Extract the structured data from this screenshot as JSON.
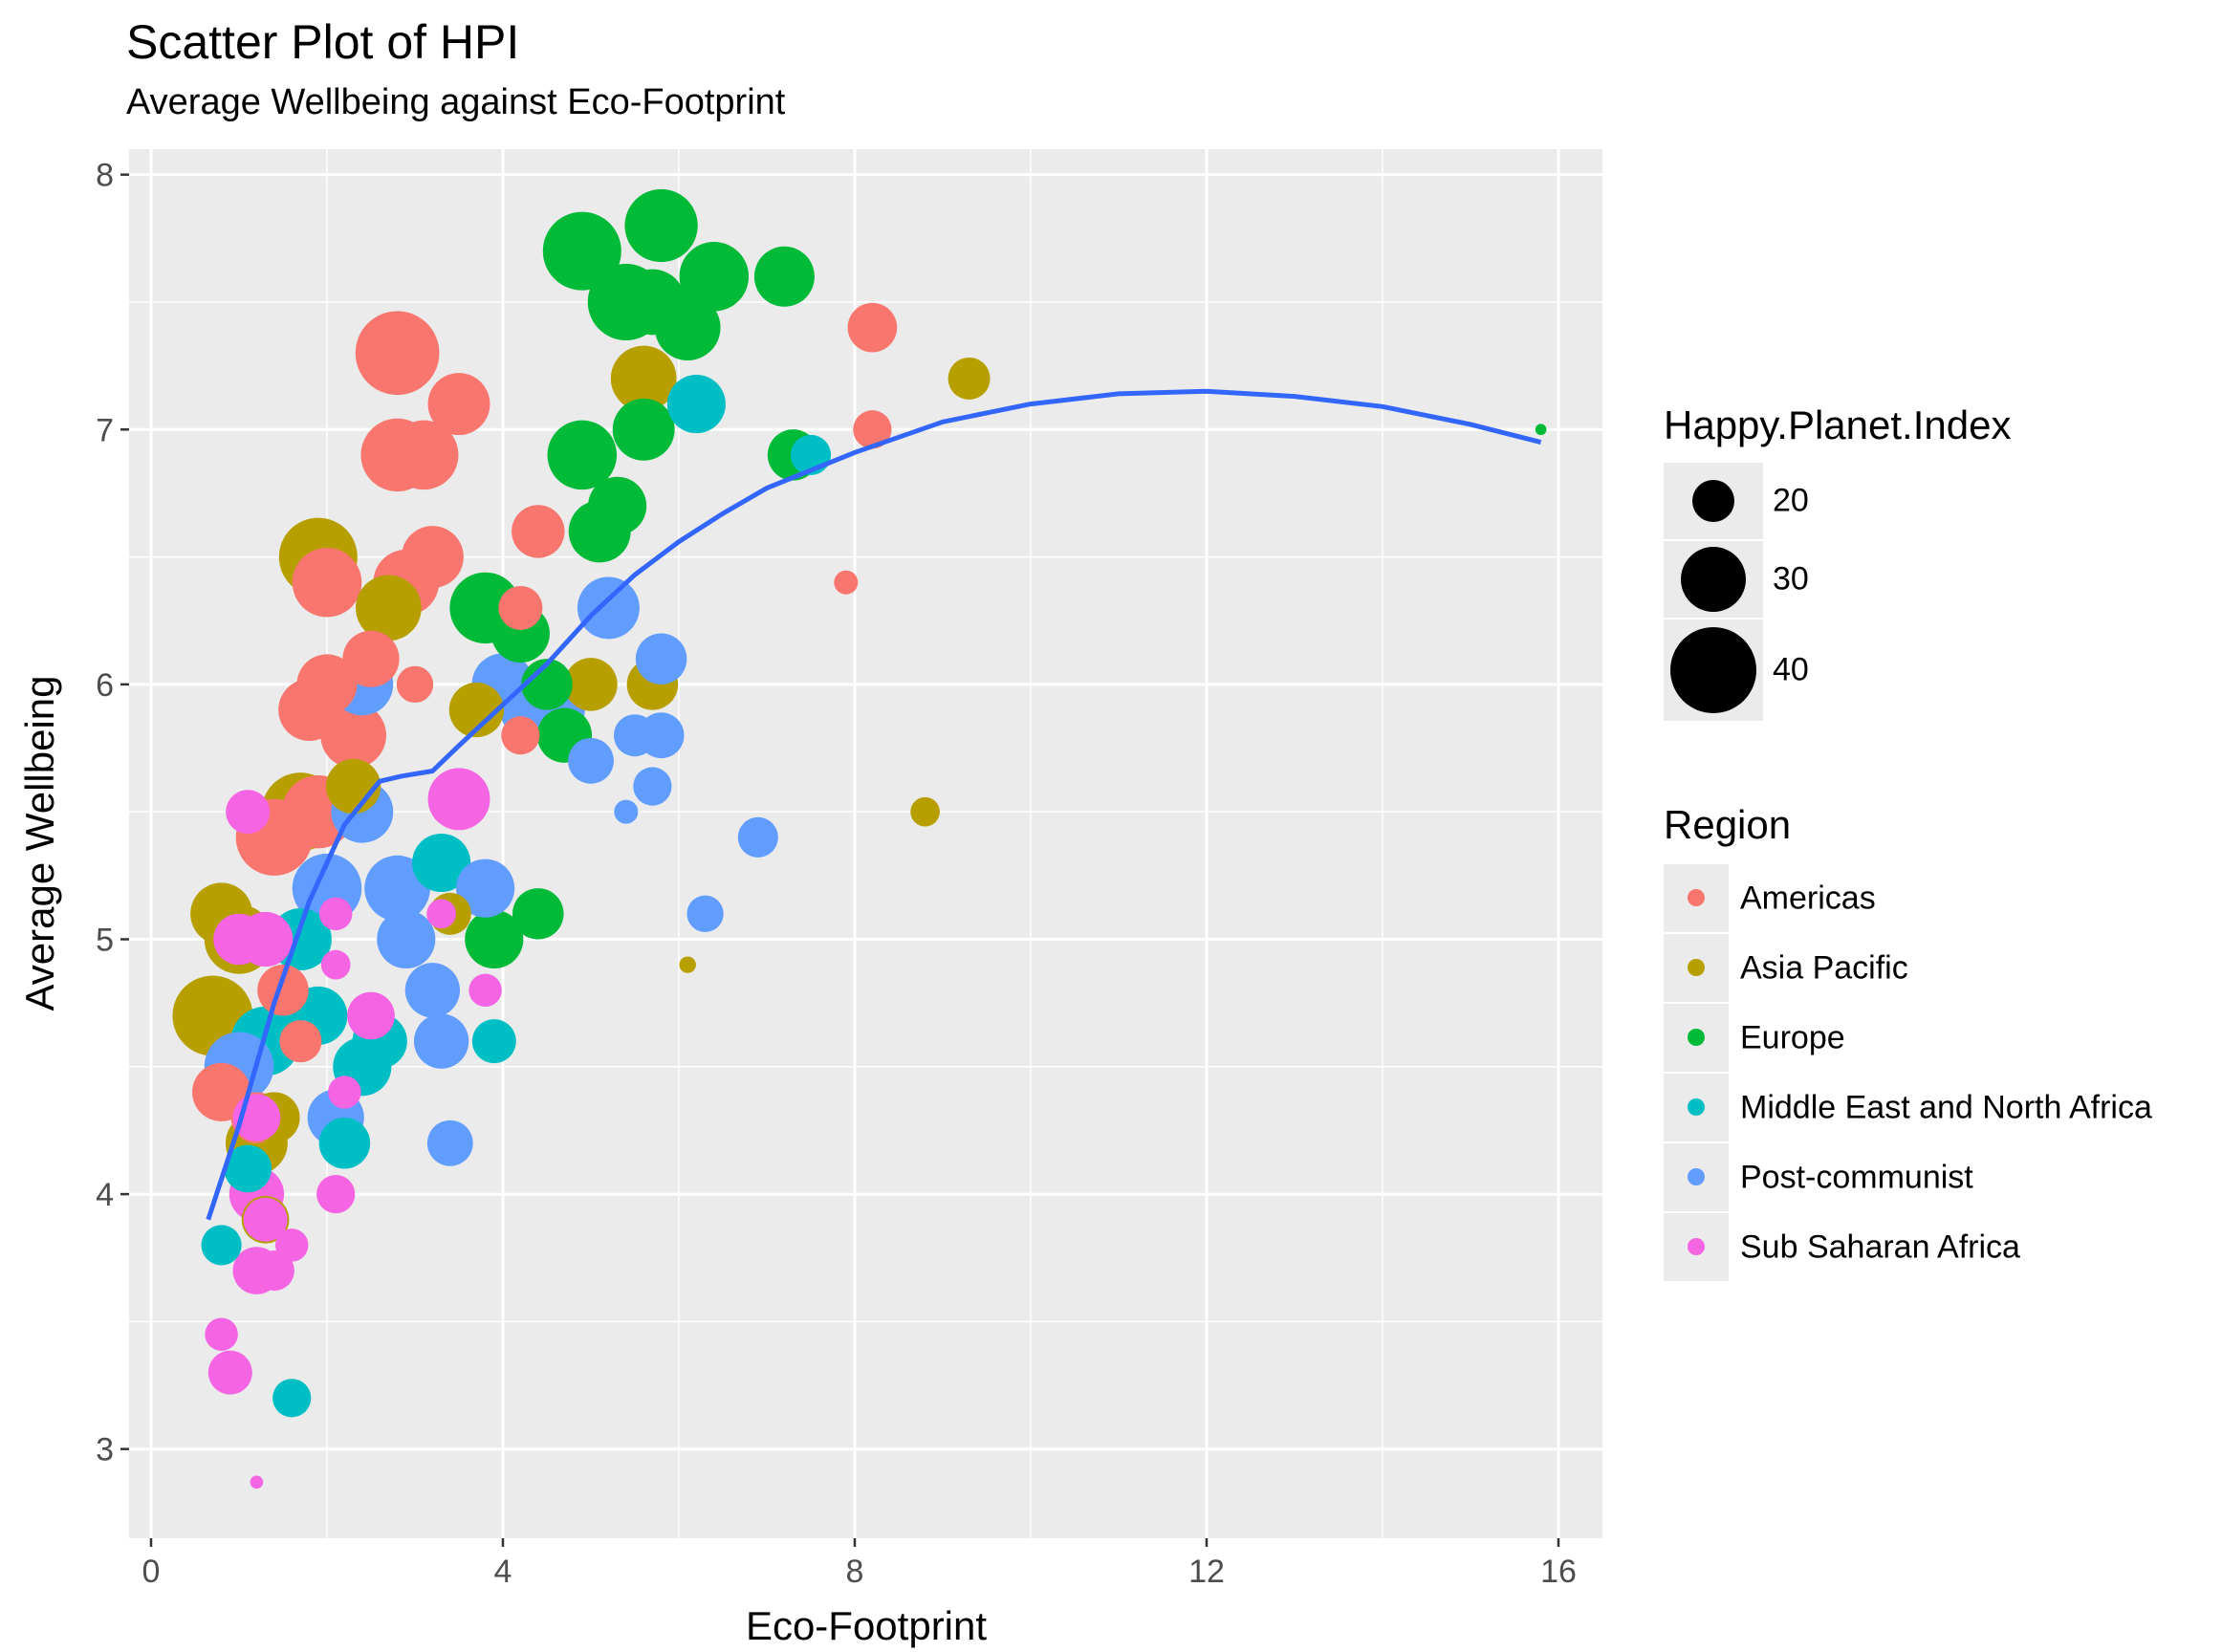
{
  "chart_data": {
    "type": "scatter",
    "title": "Scatter Plot of HPI",
    "subtitle": "Average Wellbeing against Eco-Footprint",
    "xlabel": "Eco-Footprint",
    "ylabel": "Average Wellbeing",
    "xlim": [
      -0.25,
      16.5
    ],
    "ylim": [
      2.65,
      8.1
    ],
    "xticks": [
      0,
      4,
      8,
      12,
      16
    ],
    "yticks": [
      3,
      4,
      5,
      6,
      7,
      8
    ],
    "grid": true,
    "panel_background": "#ebebeb",
    "size_legend": {
      "title": "Happy.Planet.Index",
      "entries": [
        {
          "label": "20",
          "value": 20
        },
        {
          "label": "30",
          "value": 30
        },
        {
          "label": "40",
          "value": 40
        }
      ]
    },
    "color_legend": {
      "title": "Region",
      "entries": [
        {
          "label": "Americas",
          "color": "#F8766D"
        },
        {
          "label": "Asia Pacific",
          "color": "#B79F00"
        },
        {
          "label": "Europe",
          "color": "#00BA38"
        },
        {
          "label": "Middle East and North Africa",
          "color": "#00BFC4"
        },
        {
          "label": "Post-communist",
          "color": "#619CFF"
        },
        {
          "label": "Sub Saharan Africa",
          "color": "#F564E3"
        }
      ]
    },
    "legend_position": "right",
    "series": [
      {
        "name": "Americas",
        "color": "#F8766D",
        "points": [
          [
            2.8,
            7.3,
            48
          ],
          [
            2.8,
            6.9,
            42
          ],
          [
            3.1,
            6.9,
            40
          ],
          [
            3.5,
            7.1,
            36
          ],
          [
            3.2,
            6.5,
            36
          ],
          [
            2.9,
            6.4,
            38
          ],
          [
            4.4,
            6.6,
            31
          ],
          [
            4.2,
            6.3,
            26
          ],
          [
            3.0,
            6.0,
            22
          ],
          [
            2.5,
            6.1,
            33
          ],
          [
            2.0,
            6.0,
            35
          ],
          [
            2.0,
            6.4,
            40
          ],
          [
            1.8,
            5.9,
            36
          ],
          [
            2.3,
            5.8,
            38
          ],
          [
            1.9,
            5.5,
            42
          ],
          [
            1.4,
            5.4,
            44
          ],
          [
            1.5,
            4.8,
            30
          ],
          [
            1.7,
            4.6,
            25
          ],
          [
            0.8,
            4.4,
            34
          ],
          [
            1.2,
            4.3,
            30
          ],
          [
            4.2,
            5.8,
            23
          ],
          [
            8.2,
            7.4,
            29
          ],
          [
            8.2,
            7.0,
            23
          ],
          [
            7.9,
            6.4,
            15
          ]
        ]
      },
      {
        "name": "Asia Pacific",
        "color": "#B79F00",
        "points": [
          [
            1.9,
            6.5,
            45
          ],
          [
            2.7,
            6.3,
            38
          ],
          [
            2.3,
            5.6,
            32
          ],
          [
            1.7,
            5.5,
            45
          ],
          [
            3.7,
            5.9,
            32
          ],
          [
            5.6,
            7.2,
            38
          ],
          [
            5.0,
            6.0,
            31
          ],
          [
            5.7,
            6.0,
            30
          ],
          [
            9.3,
            7.2,
            25
          ],
          [
            8.8,
            5.5,
            18
          ],
          [
            6.1,
            4.9,
            11
          ],
          [
            0.8,
            5.1,
            36
          ],
          [
            1.0,
            5.0,
            40
          ],
          [
            0.7,
            4.7,
            46
          ],
          [
            1.4,
            4.3,
            30
          ],
          [
            1.2,
            4.2,
            36
          ],
          [
            1.3,
            3.9,
            28
          ],
          [
            3.4,
            5.1,
            25
          ]
        ]
      },
      {
        "name": "Europe",
        "color": "#00BA38",
        "points": [
          [
            5.8,
            7.8,
            42
          ],
          [
            4.9,
            7.7,
            45
          ],
          [
            6.4,
            7.6,
            40
          ],
          [
            7.2,
            7.6,
            35
          ],
          [
            5.4,
            7.5,
            44
          ],
          [
            5.7,
            7.5,
            38
          ],
          [
            6.1,
            7.4,
            38
          ],
          [
            5.6,
            7.0,
            36
          ],
          [
            4.9,
            6.9,
            40
          ],
          [
            5.3,
            6.7,
            34
          ],
          [
            5.1,
            6.6,
            36
          ],
          [
            3.8,
            6.3,
            41
          ],
          [
            4.2,
            6.2,
            34
          ],
          [
            4.5,
            6.0,
            30
          ],
          [
            4.7,
            5.8,
            32
          ],
          [
            4.4,
            5.1,
            30
          ],
          [
            3.9,
            5.0,
            34
          ],
          [
            7.3,
            6.9,
            30
          ],
          [
            15.8,
            7.0,
            8
          ]
        ]
      },
      {
        "name": "Middle East and North Africa",
        "color": "#00BFC4",
        "points": [
          [
            6.2,
            7.1,
            34
          ],
          [
            7.5,
            6.9,
            24
          ],
          [
            3.3,
            5.3,
            34
          ],
          [
            1.7,
            5.0,
            36
          ],
          [
            1.9,
            4.7,
            34
          ],
          [
            2.6,
            4.6,
            32
          ],
          [
            3.9,
            4.6,
            26
          ],
          [
            2.4,
            4.5,
            34
          ],
          [
            1.3,
            4.6,
            40
          ],
          [
            2.2,
            4.2,
            30
          ],
          [
            1.1,
            4.1,
            28
          ],
          [
            0.8,
            3.8,
            24
          ],
          [
            1.6,
            3.2,
            23
          ]
        ]
      },
      {
        "name": "Post-communist",
        "color": "#619CFF",
        "points": [
          [
            5.2,
            6.3,
            36
          ],
          [
            5.8,
            6.1,
            30
          ],
          [
            4.0,
            6.0,
            36
          ],
          [
            2.4,
            6.0,
            36
          ],
          [
            4.3,
            5.9,
            34
          ],
          [
            4.6,
            5.9,
            34
          ],
          [
            5.5,
            5.8,
            25
          ],
          [
            5.8,
            5.8,
            27
          ],
          [
            5.0,
            5.7,
            27
          ],
          [
            5.7,
            5.6,
            23
          ],
          [
            5.4,
            5.5,
            15
          ],
          [
            6.9,
            5.4,
            24
          ],
          [
            2.4,
            5.5,
            36
          ],
          [
            2.0,
            5.2,
            40
          ],
          [
            2.8,
            5.2,
            38
          ],
          [
            3.8,
            5.2,
            34
          ],
          [
            2.9,
            5.0,
            34
          ],
          [
            6.3,
            5.1,
            22
          ],
          [
            3.2,
            4.8,
            32
          ],
          [
            2.1,
            4.3,
            33
          ],
          [
            3.3,
            4.6,
            32
          ],
          [
            1.0,
            4.5,
            40
          ],
          [
            3.4,
            4.2,
            27
          ]
        ]
      },
      {
        "name": "Sub Saharan Africa",
        "color": "#F564E3",
        "points": [
          [
            3.5,
            5.55,
            36
          ],
          [
            1.1,
            5.5,
            26
          ],
          [
            1.3,
            5.0,
            32
          ],
          [
            1.0,
            5.0,
            30
          ],
          [
            2.1,
            5.1,
            20
          ],
          [
            3.3,
            5.1,
            18
          ],
          [
            2.1,
            4.9,
            18
          ],
          [
            3.8,
            4.8,
            20
          ],
          [
            2.5,
            4.7,
            28
          ],
          [
            1.2,
            4.3,
            28
          ],
          [
            2.2,
            4.4,
            20
          ],
          [
            1.2,
            4.0,
            32
          ],
          [
            2.1,
            4.0,
            23
          ],
          [
            1.3,
            3.9,
            26
          ],
          [
            1.6,
            3.8,
            20
          ],
          [
            1.4,
            3.7,
            24
          ],
          [
            1.2,
            3.7,
            28
          ],
          [
            0.8,
            3.45,
            20
          ],
          [
            0.9,
            3.3,
            26
          ],
          [
            1.2,
            2.87,
            9
          ]
        ]
      }
    ],
    "trend_line": {
      "color": "#3366FF",
      "x": [
        0.65,
        1.0,
        1.4,
        1.8,
        2.2,
        2.6,
        2.85,
        3.2,
        3.5,
        4.0,
        4.5,
        5.0,
        5.5,
        6.0,
        6.5,
        7.0,
        8.0,
        9.0,
        10.0,
        11.0,
        12.0,
        13.0,
        14.0,
        15.0,
        15.8
      ],
      "y": [
        3.9,
        4.27,
        4.75,
        5.15,
        5.45,
        5.62,
        5.64,
        5.66,
        5.76,
        5.92,
        6.08,
        6.27,
        6.43,
        6.56,
        6.67,
        6.77,
        6.91,
        7.03,
        7.1,
        7.14,
        7.15,
        7.13,
        7.09,
        7.02,
        6.95
      ]
    }
  }
}
